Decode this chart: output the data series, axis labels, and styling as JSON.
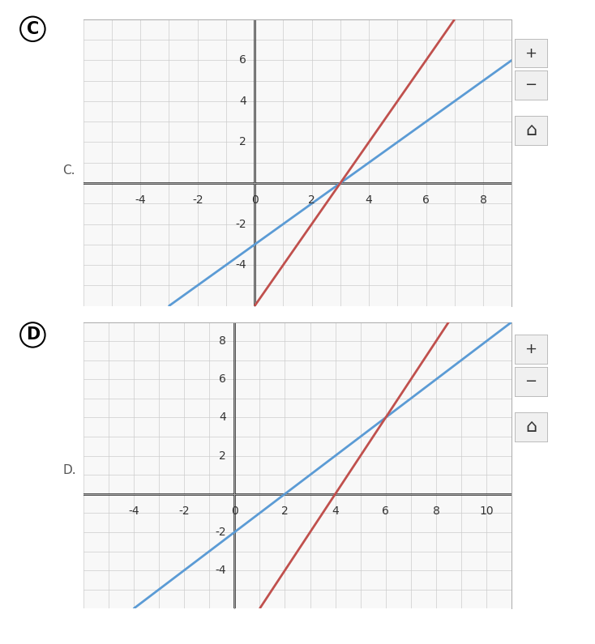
{
  "fig_bg": "#ffffff",
  "panel_bg": "#f8f8f8",
  "grid_color": "#cccccc",
  "axis_color": "#222222",
  "tick_fontsize": 10,
  "line_width": 2.0,
  "graph_C": {
    "label": "C",
    "xlim": [
      -6,
      9
    ],
    "ylim": [
      -6,
      8
    ],
    "xticks": [
      -4,
      -2,
      0,
      2,
      4,
      6,
      8
    ],
    "yticks": [
      -4,
      -2,
      2,
      4,
      6
    ],
    "blue_line": {
      "slope": 1,
      "intercept": -3,
      "color": "#5b9bd5"
    },
    "red_line": {
      "slope": 2,
      "intercept": -6,
      "color": "#c0504d"
    }
  },
  "graph_D": {
    "label": "D",
    "xlim": [
      -6,
      11
    ],
    "ylim": [
      -6,
      9
    ],
    "xticks": [
      -4,
      -2,
      0,
      2,
      4,
      6,
      8,
      10
    ],
    "yticks": [
      -4,
      -2,
      2,
      4,
      6,
      8
    ],
    "blue_line": {
      "slope": 1,
      "intercept": -2,
      "color": "#5b9bd5"
    },
    "red_line": {
      "slope": 2,
      "intercept": -8,
      "color": "#c0504d"
    }
  }
}
